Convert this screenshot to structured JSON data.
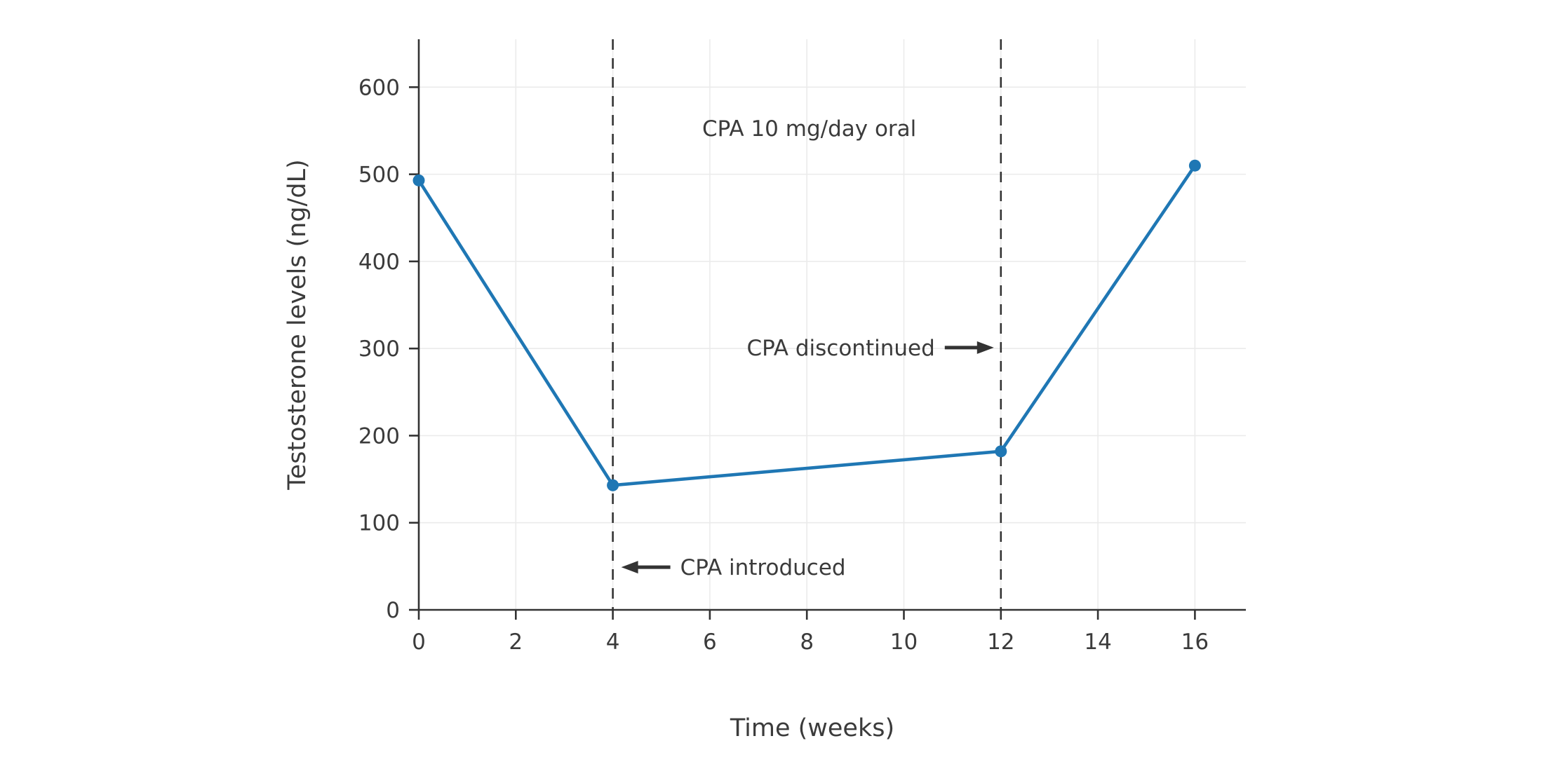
{
  "page": {
    "background": "#ffffff"
  },
  "chart_data": {
    "type": "line",
    "x": [
      0,
      4,
      12,
      16
    ],
    "y": [
      493,
      143,
      182,
      510
    ],
    "title": "",
    "xlabel": "Time (weeks)",
    "ylabel": "Testosterone levels (ng/dL)",
    "xticks": [
      0,
      2,
      4,
      6,
      8,
      10,
      12,
      14,
      16
    ],
    "yticks": [
      0,
      100,
      200,
      300,
      400,
      500,
      600
    ],
    "xlim": [
      0,
      17.05
    ],
    "ylim": [
      0,
      655
    ],
    "grid": true,
    "legend": false,
    "line_color": "#1f77b4",
    "marker_color": "#1f77b4",
    "axis_color": "#333333",
    "grid_color": "#ebebeb",
    "text_color": "#3b3b3b",
    "annotation_color": "#333333",
    "vlines": [
      {
        "x": 4,
        "style": "dashed"
      },
      {
        "x": 12,
        "style": "dashed"
      }
    ],
    "annotations": [
      {
        "id": "cpa-dose-label",
        "text": "CPA 10 mg/day oral",
        "x": 8.05,
        "y": 553,
        "anchor": "middle",
        "arrow": null
      },
      {
        "id": "cpa-discontinued-label",
        "text": "CPA discontinued",
        "x": 12,
        "y": 301,
        "anchor": "end",
        "arrow": "right"
      },
      {
        "id": "cpa-introduced-label",
        "text": "CPA introduced",
        "x": 4,
        "y": 49,
        "anchor": "start",
        "arrow": "left"
      }
    ]
  }
}
